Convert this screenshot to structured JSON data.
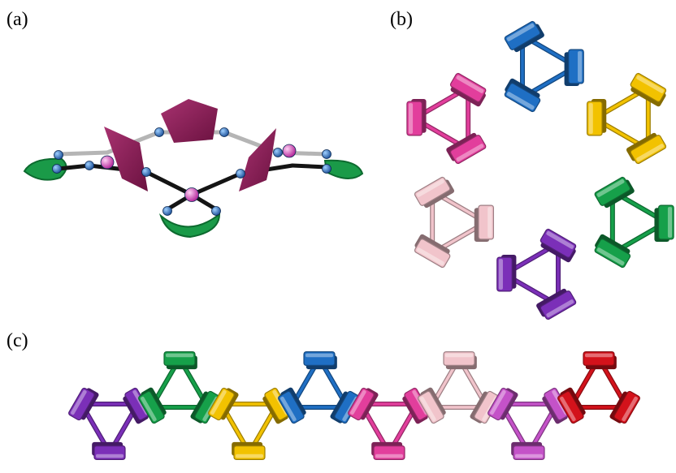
{
  "panels": [
    {
      "id": "a",
      "label": "(a)"
    },
    {
      "id": "b",
      "label": "(b)"
    },
    {
      "id": "c",
      "label": "(c)"
    }
  ],
  "colors": {
    "blue": "#1f6fc4",
    "yellow": "#f2c200",
    "green": "#16a04a",
    "purple": "#7b2fb8",
    "pink_light": "#f1c4cb",
    "magenta": "#e23e9c",
    "orchid": "#c452c8",
    "red": "#d3121b",
    "polyhedron": "#8e1f55",
    "atom_blue": "#2b6fc0",
    "atom_pink": "#e85bd0",
    "bond_dark": "#141414",
    "bond_grey": "#b5b5b5"
  },
  "panel_b_triangles": [
    "blue",
    "yellow",
    "green",
    "purple",
    "pink_light",
    "magenta"
  ],
  "panel_c_triangles": [
    "purple",
    "green",
    "yellow",
    "blue",
    "magenta",
    "pink_light",
    "orchid",
    "red"
  ]
}
